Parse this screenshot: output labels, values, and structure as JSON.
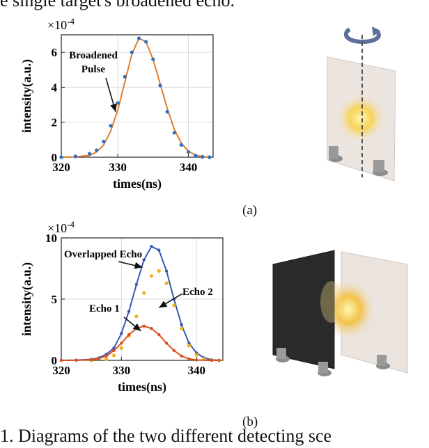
{
  "caption_top": "e single target's broadened echo.",
  "caption_bottom": "1. Diagrams of the two different detecting sce",
  "panels": [
    {
      "label": "(a)"
    },
    {
      "label": "(b)"
    }
  ],
  "chart_data": [
    {
      "type": "line",
      "xlabel": "times(ns)",
      "ylabel": "intensity(a.u.)",
      "y_multiplier": "×10",
      "y_exponent": "-4",
      "xlim": [
        322,
        343.5
      ],
      "ylim": [
        0,
        7
      ],
      "xticks": [
        320,
        330,
        340
      ],
      "yticks": [
        0,
        2,
        4,
        6
      ],
      "grid": true,
      "annotation": [
        "Broadened",
        "Pulse"
      ],
      "series": [
        {
          "color": "#e07b2a",
          "style": "line",
          "x": [
            322,
            324,
            326,
            327,
            328,
            329,
            330,
            331,
            332,
            333,
            334,
            335,
            336,
            337,
            338,
            339,
            340,
            341,
            342,
            343
          ],
          "y": [
            0.0,
            0.02,
            0.1,
            0.3,
            0.7,
            1.5,
            2.7,
            4.3,
            5.9,
            6.8,
            6.6,
            5.6,
            4.2,
            2.8,
            1.6,
            0.8,
            0.35,
            0.12,
            0.03,
            0.0
          ]
        },
        {
          "color": "#2e6fc0",
          "style": "dots",
          "x": [
            322,
            324,
            326,
            327,
            328,
            329,
            330,
            331,
            332,
            333,
            334,
            335,
            336,
            337,
            338,
            339,
            340,
            341,
            342,
            343
          ],
          "y": [
            0.0,
            0.05,
            0.2,
            0.4,
            0.9,
            1.8,
            3.1,
            4.6,
            6.0,
            6.8,
            6.6,
            5.6,
            4.1,
            2.6,
            1.4,
            0.7,
            0.3,
            0.1,
            0.02,
            0.0
          ]
        }
      ]
    },
    {
      "type": "line",
      "xlabel": "times(ns)",
      "ylabel": "intensity(a.u.)",
      "y_multiplier": "×10",
      "y_exponent": "-4",
      "xlim": [
        322,
        343.5
      ],
      "ylim": [
        0,
        10
      ],
      "xticks": [
        320,
        330,
        340
      ],
      "yticks": [
        0,
        5,
        10
      ],
      "grid": true,
      "annotations": [
        "Overlapped Echo",
        "Echo 2",
        "Echo 1"
      ],
      "series": [
        {
          "name": "Overlapped Echo",
          "color": "#3a55b0",
          "style": "line-markers",
          "x": [
            322,
            324,
            326,
            327,
            328,
            329,
            330,
            331,
            332,
            333,
            334,
            335,
            336,
            337,
            338,
            339,
            340,
            341,
            342,
            343
          ],
          "y": [
            0.0,
            0.02,
            0.08,
            0.2,
            0.5,
            1.0,
            2.2,
            4.0,
            6.2,
            8.2,
            9.3,
            9.0,
            7.3,
            5.0,
            2.9,
            1.4,
            0.6,
            0.2,
            0.05,
            0.0
          ]
        },
        {
          "name": "Echo 2",
          "color": "#f0b21e",
          "style": "dots",
          "x": [
            326,
            328,
            329,
            330,
            331,
            332,
            333,
            334,
            335,
            336,
            337,
            338,
            339,
            340,
            341,
            342,
            343
          ],
          "y": [
            0.0,
            0.1,
            0.4,
            1.0,
            2.0,
            3.6,
            5.5,
            6.9,
            7.3,
            6.3,
            4.5,
            2.6,
            1.2,
            0.45,
            0.12,
            0.02,
            0.0
          ]
        },
        {
          "name": "Echo 1",
          "color": "#d9521e",
          "style": "line-markers",
          "x": [
            322,
            324,
            326,
            327,
            328,
            329,
            330,
            331,
            332,
            333,
            334,
            335,
            336,
            337,
            338,
            339,
            340,
            342,
            343
          ],
          "y": [
            0.0,
            0.01,
            0.05,
            0.15,
            0.35,
            0.8,
            1.4,
            2.1,
            2.6,
            2.8,
            2.6,
            2.1,
            1.4,
            0.8,
            0.35,
            0.12,
            0.03,
            0.0,
            0.0
          ]
        }
      ]
    }
  ]
}
